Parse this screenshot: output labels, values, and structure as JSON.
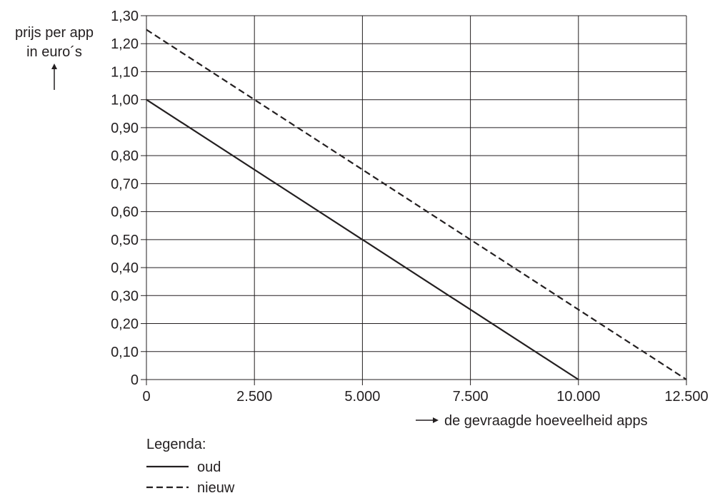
{
  "chart_data": {
    "type": "line",
    "ylabel_lines": [
      "prijs per app",
      "in euro´s"
    ],
    "xlabel": "de gevraagde hoeveelheid apps",
    "x_ticks": [
      0,
      2500,
      5000,
      7500,
      10000,
      12500
    ],
    "x_tick_labels": [
      "0",
      "2.500",
      "5.000",
      "7.500",
      "10.000",
      "12.500"
    ],
    "y_ticks": [
      0,
      0.1,
      0.2,
      0.3,
      0.4,
      0.5,
      0.6,
      0.7,
      0.8,
      0.9,
      1.0,
      1.1,
      1.2,
      1.3
    ],
    "y_tick_labels": [
      "0",
      "0,10",
      "0,20",
      "0,30",
      "0,40",
      "0,50",
      "0,60",
      "0,70",
      "0,80",
      "0,90",
      "1,00",
      "1,10",
      "1,20",
      "1,30"
    ],
    "xlim": [
      0,
      12500
    ],
    "ylim": [
      0,
      1.3
    ],
    "grid": true,
    "series": [
      {
        "name": "oud",
        "style": "solid",
        "color": "#231f20",
        "x": [
          0,
          10000
        ],
        "y": [
          1.0,
          0
        ]
      },
      {
        "name": "nieuw",
        "style": "dashed",
        "color": "#231f20",
        "x": [
          0,
          12500
        ],
        "y": [
          1.25,
          0
        ]
      }
    ],
    "legend": {
      "title": "Legenda:",
      "placement": "bottom-left",
      "entries": [
        "oud",
        "nieuw"
      ]
    }
  }
}
